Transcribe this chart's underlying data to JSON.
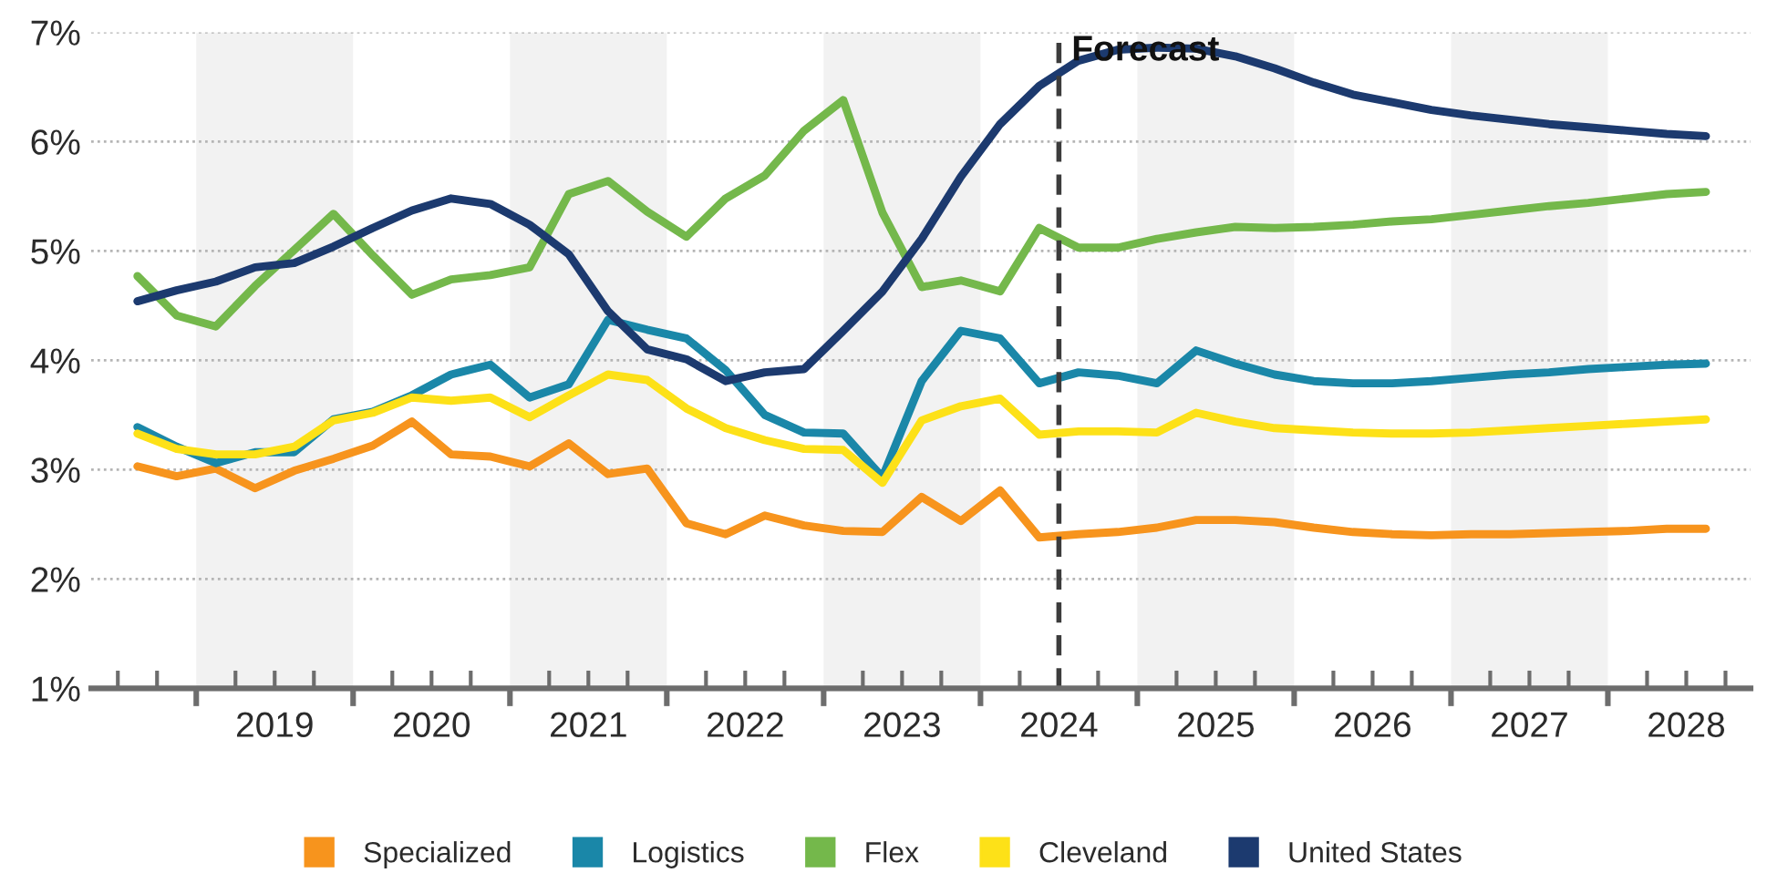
{
  "chart_data": {
    "type": "line",
    "x": [
      2018.625,
      2018.875,
      2019.125,
      2019.375,
      2019.625,
      2019.875,
      2020.125,
      2020.375,
      2020.625,
      2020.875,
      2021.125,
      2021.375,
      2021.625,
      2021.875,
      2022.125,
      2022.375,
      2022.625,
      2022.875,
      2023.125,
      2023.375,
      2023.625,
      2023.875,
      2024.125,
      2024.375,
      2024.625,
      2024.875,
      2025.125,
      2025.375,
      2025.625,
      2025.875,
      2026.125,
      2026.375,
      2026.625,
      2026.875,
      2027.125,
      2027.375,
      2027.625,
      2027.875,
      2028.125,
      2028.375,
      2028.625
    ],
    "series": [
      {
        "name": "Specialized",
        "color": "#f7941d",
        "values": [
          3.03,
          2.94,
          3.01,
          2.83,
          2.99,
          3.1,
          3.22,
          3.44,
          3.14,
          3.12,
          3.03,
          3.24,
          2.96,
          3.01,
          2.51,
          2.41,
          2.58,
          2.49,
          2.44,
          2.43,
          2.75,
          2.53,
          2.81,
          2.38,
          2.41,
          2.43,
          2.47,
          2.54,
          2.54,
          2.52,
          2.47,
          2.43,
          2.41,
          2.4,
          2.41,
          2.41,
          2.42,
          2.43,
          2.44,
          2.46,
          2.46
        ]
      },
      {
        "name": "Logistics",
        "color": "#1a87a8",
        "values": [
          3.39,
          3.21,
          3.06,
          3.16,
          3.16,
          3.46,
          3.53,
          3.68,
          3.87,
          3.96,
          3.66,
          3.78,
          4.37,
          4.28,
          4.2,
          3.91,
          3.5,
          3.34,
          3.33,
          2.93,
          3.81,
          4.27,
          4.2,
          3.79,
          3.89,
          3.86,
          3.79,
          4.09,
          3.97,
          3.87,
          3.81,
          3.79,
          3.79,
          3.81,
          3.84,
          3.87,
          3.89,
          3.92,
          3.94,
          3.96,
          3.97
        ]
      },
      {
        "name": "Flex",
        "color": "#74b84b",
        "values": [
          4.77,
          4.41,
          4.31,
          4.68,
          5.01,
          5.34,
          4.96,
          4.6,
          4.74,
          4.78,
          4.85,
          5.52,
          5.64,
          5.36,
          5.13,
          5.48,
          5.69,
          6.1,
          6.38,
          5.35,
          4.67,
          4.73,
          4.63,
          5.21,
          5.03,
          5.03,
          5.11,
          5.17,
          5.22,
          5.21,
          5.22,
          5.24,
          5.27,
          5.29,
          5.33,
          5.37,
          5.41,
          5.44,
          5.48,
          5.52,
          5.54
        ]
      },
      {
        "name": "Cleveland",
        "color": "#fde118",
        "values": [
          3.33,
          3.19,
          3.14,
          3.14,
          3.21,
          3.45,
          3.52,
          3.66,
          3.63,
          3.66,
          3.48,
          3.68,
          3.87,
          3.82,
          3.56,
          3.38,
          3.27,
          3.19,
          3.18,
          2.88,
          3.45,
          3.58,
          3.65,
          3.32,
          3.35,
          3.35,
          3.34,
          3.52,
          3.44,
          3.38,
          3.36,
          3.34,
          3.33,
          3.33,
          3.34,
          3.36,
          3.38,
          3.4,
          3.42,
          3.44,
          3.46
        ]
      },
      {
        "name": "United States",
        "color": "#1c3a6f",
        "values": [
          4.54,
          4.64,
          4.72,
          4.85,
          4.89,
          5.04,
          5.21,
          5.37,
          5.48,
          5.43,
          5.24,
          4.97,
          4.45,
          4.1,
          4.01,
          3.81,
          3.89,
          3.92,
          4.27,
          4.63,
          5.11,
          5.68,
          6.16,
          6.51,
          6.74,
          6.84,
          6.86,
          6.85,
          6.78,
          6.67,
          6.54,
          6.43,
          6.36,
          6.29,
          6.24,
          6.2,
          6.16,
          6.13,
          6.1,
          6.07,
          6.05
        ]
      }
    ],
    "xlim": [
      2018.33,
      2028.91
    ],
    "xticks": [
      {
        "value": 2018.5,
        "label": null
      },
      {
        "value": 2018.75,
        "label": null
      },
      {
        "value": 2019,
        "label": null
      },
      {
        "value": 2019.25,
        "label": null
      },
      {
        "value": 2019.5,
        "label": "2019"
      },
      {
        "value": 2019.75,
        "label": null
      },
      {
        "value": 2020,
        "label": null
      },
      {
        "value": 2020.25,
        "label": null
      },
      {
        "value": 2020.5,
        "label": "2020"
      },
      {
        "value": 2020.75,
        "label": null
      },
      {
        "value": 2021,
        "label": null
      },
      {
        "value": 2021.25,
        "label": null
      },
      {
        "value": 2021.5,
        "label": "2021"
      },
      {
        "value": 2021.75,
        "label": null
      },
      {
        "value": 2022,
        "label": null
      },
      {
        "value": 2022.25,
        "label": null
      },
      {
        "value": 2022.5,
        "label": "2022"
      },
      {
        "value": 2022.75,
        "label": null
      },
      {
        "value": 2023,
        "label": null
      },
      {
        "value": 2023.25,
        "label": null
      },
      {
        "value": 2023.5,
        "label": "2023"
      },
      {
        "value": 2023.75,
        "label": null
      },
      {
        "value": 2024,
        "label": null
      },
      {
        "value": 2024.25,
        "label": null
      },
      {
        "value": 2024.5,
        "label": "2024"
      },
      {
        "value": 2024.75,
        "label": null
      },
      {
        "value": 2025,
        "label": null
      },
      {
        "value": 2025.25,
        "label": null
      },
      {
        "value": 2025.5,
        "label": "2025"
      },
      {
        "value": 2025.75,
        "label": null
      },
      {
        "value": 2026,
        "label": null
      },
      {
        "value": 2026.25,
        "label": null
      },
      {
        "value": 2026.5,
        "label": "2026"
      },
      {
        "value": 2026.75,
        "label": null
      },
      {
        "value": 2027,
        "label": null
      },
      {
        "value": 2027.25,
        "label": null
      },
      {
        "value": 2027.5,
        "label": "2027"
      },
      {
        "value": 2027.75,
        "label": null
      },
      {
        "value": 2028,
        "label": null
      },
      {
        "value": 2028.25,
        "label": null
      },
      {
        "value": 2028.5,
        "label": "2028"
      },
      {
        "value": 2028.75,
        "label": null
      }
    ],
    "ylim": [
      1,
      7
    ],
    "yticks": [
      {
        "value": 1,
        "label": "1%"
      },
      {
        "value": 2,
        "label": "2%"
      },
      {
        "value": 3,
        "label": "3%"
      },
      {
        "value": 4,
        "label": "4%"
      },
      {
        "value": 5,
        "label": "5%"
      },
      {
        "value": 6,
        "label": "6%"
      },
      {
        "value": 7,
        "label": "7%"
      }
    ],
    "bands": [
      {
        "axis": "x",
        "from": 2019,
        "to": 2020,
        "color": "#f2f2f2"
      },
      {
        "axis": "x",
        "from": 2021,
        "to": 2022,
        "color": "#f2f2f2"
      },
      {
        "axis": "x",
        "from": 2023,
        "to": 2024,
        "color": "#f2f2f2"
      },
      {
        "axis": "x",
        "from": 2025,
        "to": 2026,
        "color": "#f2f2f2"
      },
      {
        "axis": "x",
        "from": 2027,
        "to": 2028,
        "color": "#f2f2f2"
      }
    ],
    "ref_lines": [
      {
        "axis": "x",
        "value": 2024.5,
        "label": "Forecast",
        "color": "#3c3c3c",
        "line_style": "dashed"
      }
    ],
    "grid": "y",
    "legend": "bottom"
  }
}
